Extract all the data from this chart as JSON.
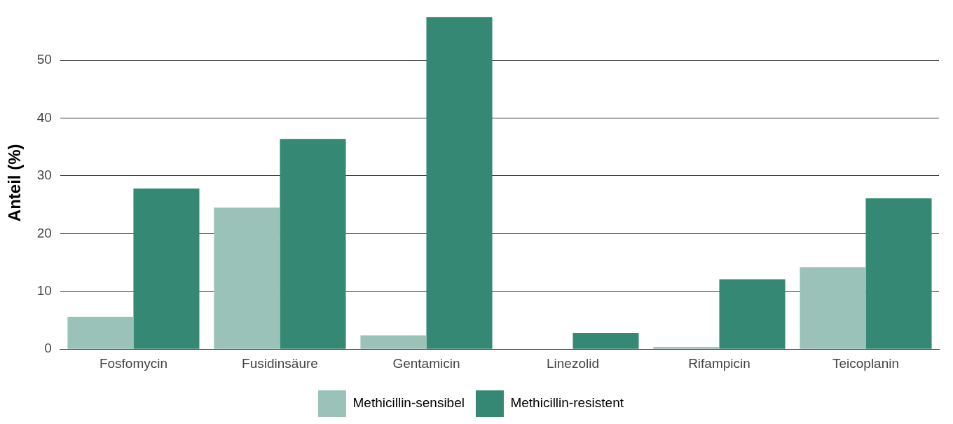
{
  "chart_data": {
    "type": "bar",
    "ylabel": "Anteil (%)",
    "categories": [
      "Fosfomycin",
      "Fusidinsäure",
      "Gentamicin",
      "Linezolid",
      "Rifampicin",
      "Teicoplanin"
    ],
    "series": [
      {
        "name": "Methicillin-sensibel",
        "color": "#9ac2b8",
        "values": [
          5.6,
          24.5,
          2.4,
          null,
          0.4,
          14.2
        ]
      },
      {
        "name": "Methicillin-resistent",
        "color": "#348874",
        "values": [
          27.8,
          36.4,
          57.5,
          2.8,
          12.1,
          26.1
        ]
      }
    ],
    "ylim": [
      0,
      57.6
    ],
    "yticks": [
      0,
      10,
      20,
      30,
      40,
      50
    ],
    "grid": "y",
    "legend": "bottom"
  }
}
